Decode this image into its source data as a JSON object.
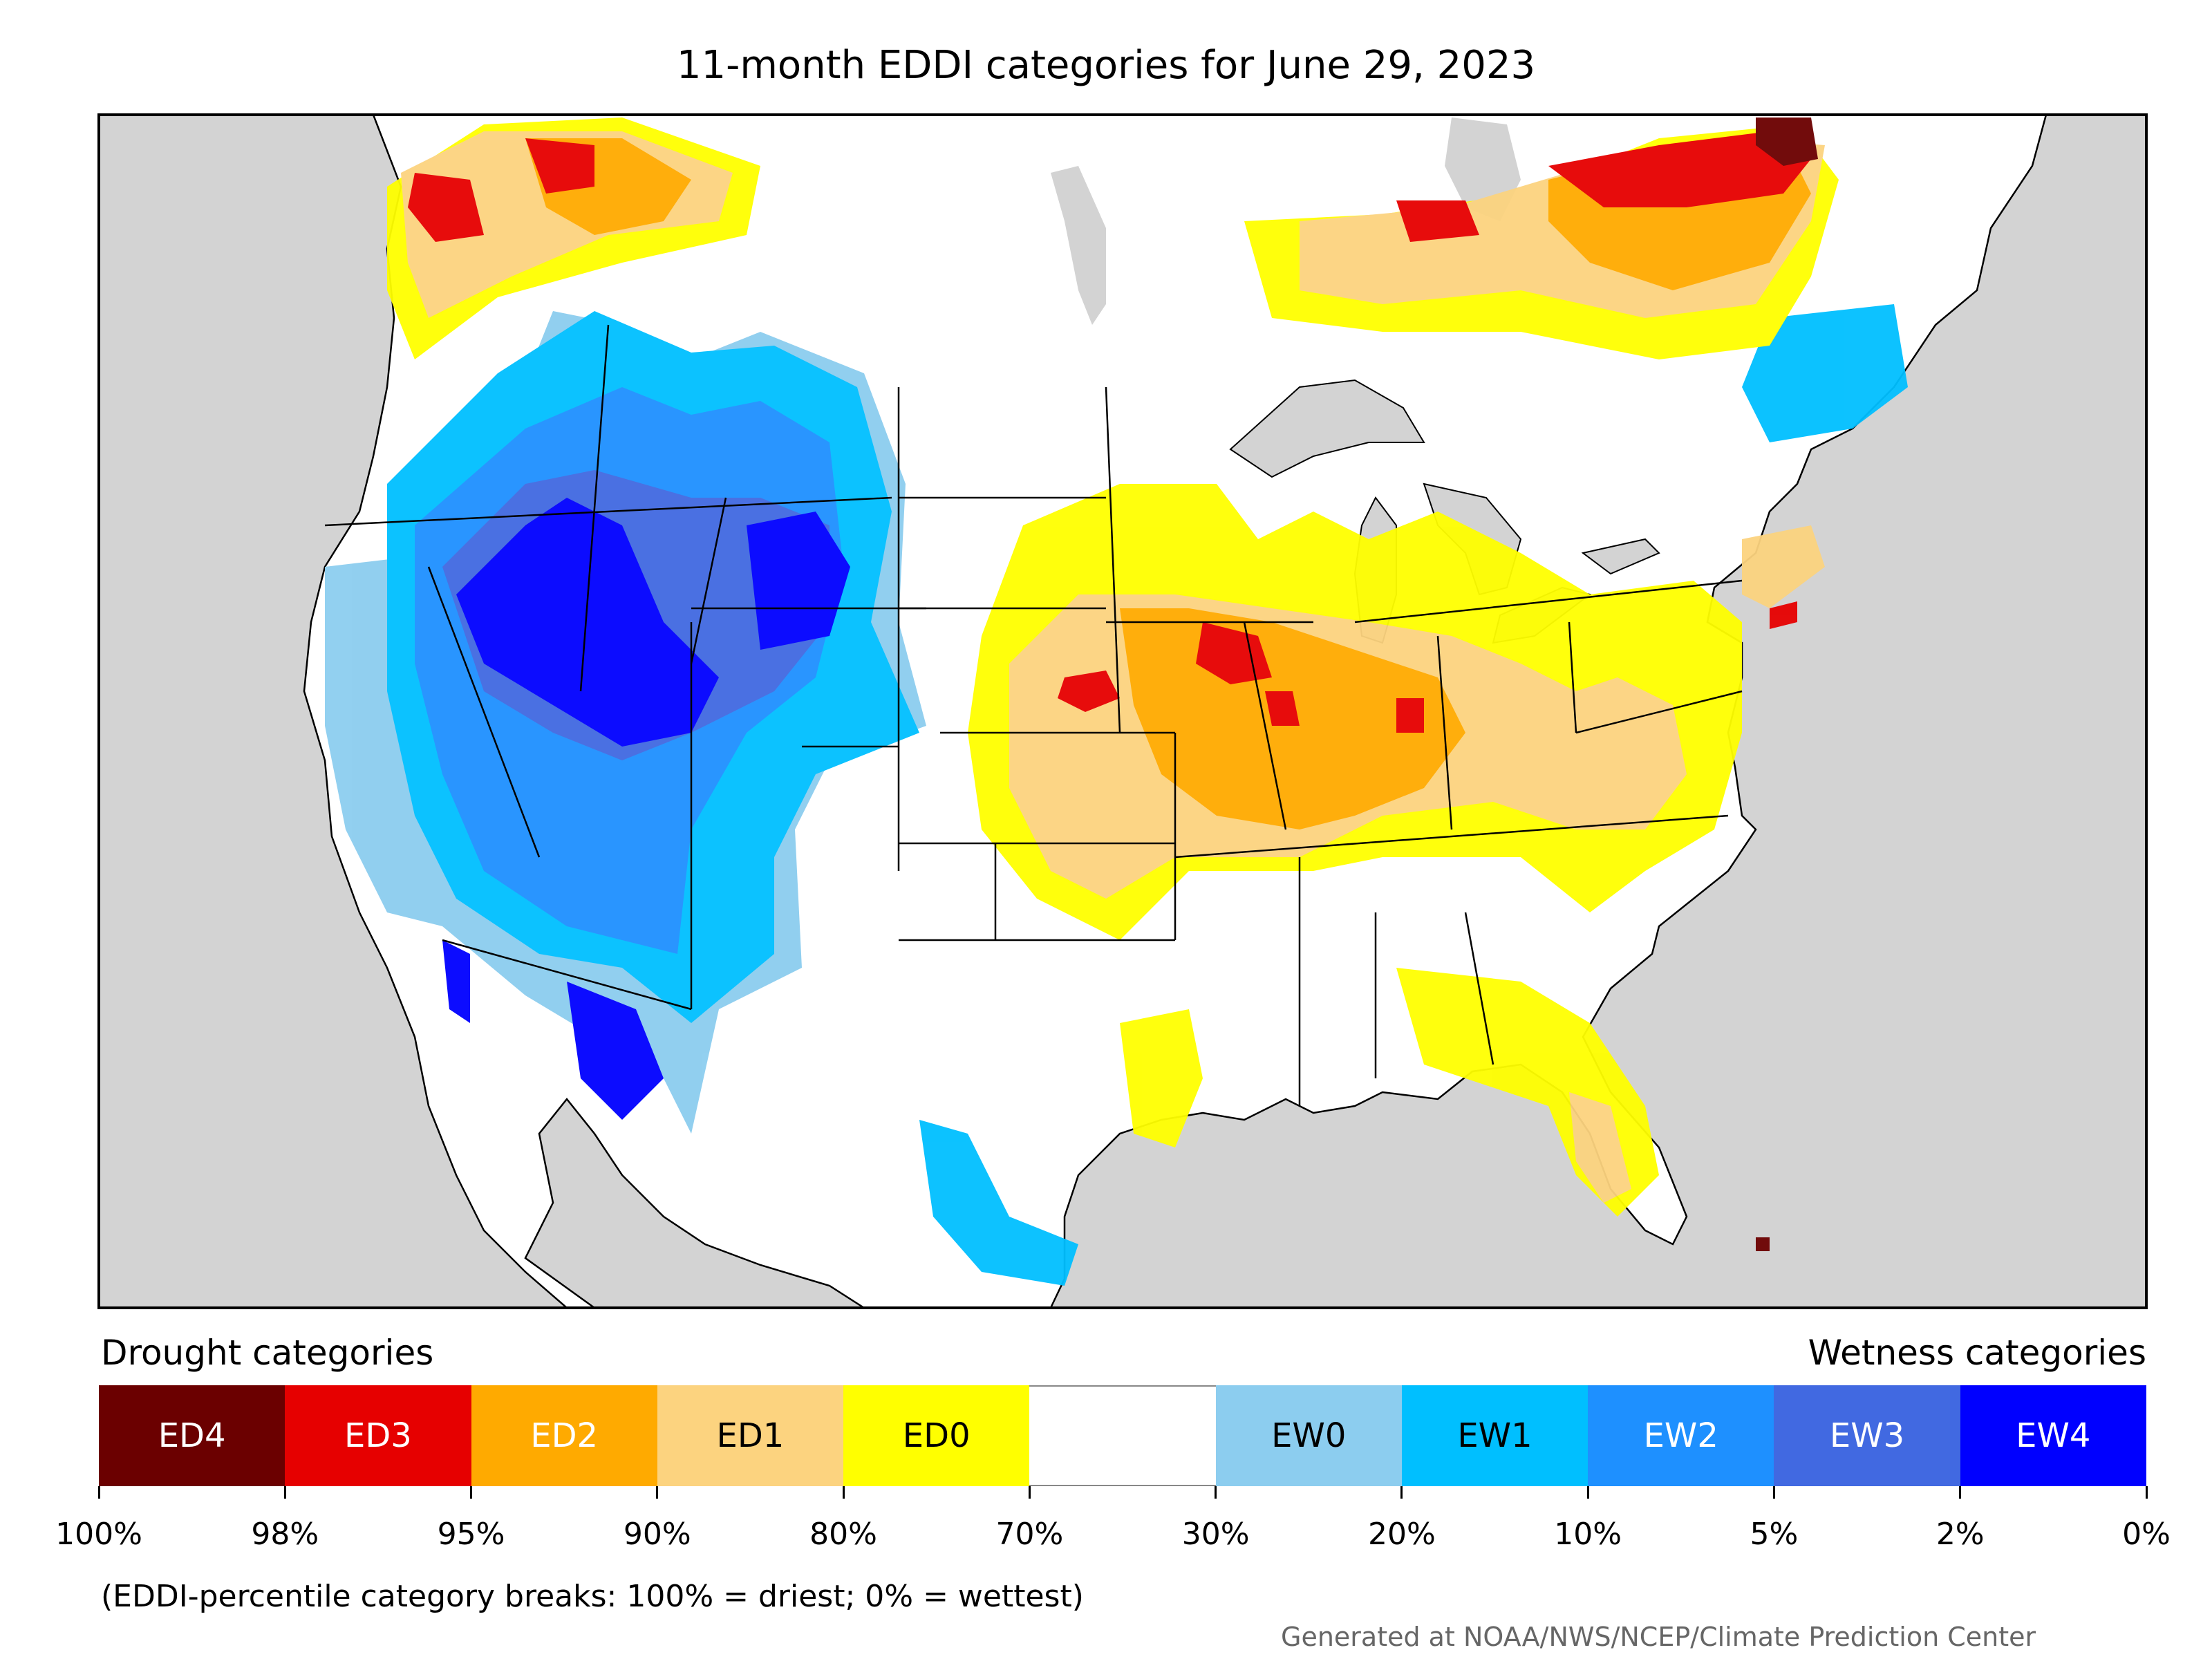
{
  "title": "11-month EDDI categories for June 29, 2023",
  "legend": {
    "drought_label": "Drought categories",
    "wetness_label": "Wetness categories",
    "categories": [
      {
        "label": "ED4",
        "color": "#6b0000",
        "text_color": "#ffffff"
      },
      {
        "label": "ED3",
        "color": "#e60000",
        "text_color": "#ffffff"
      },
      {
        "label": "ED2",
        "color": "#ffaa00",
        "text_color": "#ffffff"
      },
      {
        "label": "ED1",
        "color": "#fcd37f",
        "text_color": "#000000"
      },
      {
        "label": "ED0",
        "color": "#ffff00",
        "text_color": "#000000"
      },
      {
        "label": "",
        "color": "#ffffff",
        "text_color": "#000000"
      },
      {
        "label": "EW0",
        "color": "#8ccdef",
        "text_color": "#000000"
      },
      {
        "label": "EW1",
        "color": "#00bfff",
        "text_color": "#000000"
      },
      {
        "label": "EW2",
        "color": "#1e90ff",
        "text_color": "#ffffff"
      },
      {
        "label": "EW3",
        "color": "#4169e1",
        "text_color": "#ffffff"
      },
      {
        "label": "EW4",
        "color": "#0000ff",
        "text_color": "#ffffff"
      }
    ],
    "ticks": [
      "100%",
      "98%",
      "95%",
      "90%",
      "80%",
      "70%",
      "30%",
      "20%",
      "10%",
      "5%",
      "2%",
      "0%"
    ]
  },
  "note": "(EDDI-percentile category breaks: 100% = driest; 0% = wettest)",
  "credit": "Generated at NOAA/NWS/NCEP/Climate Prediction Center",
  "colors": {
    "ocean": "#d3d3d3",
    "land": "#ffffff",
    "border": "#000000"
  }
}
